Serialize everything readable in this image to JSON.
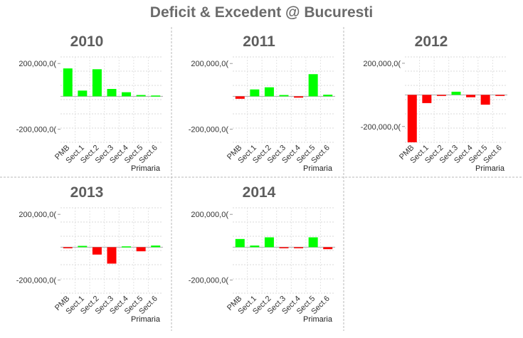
{
  "title": "Deficit & Excedent @ Bucuresti",
  "colors": {
    "positive": "#00ff00",
    "negative": "#ff0000"
  },
  "chart_data": [
    {
      "type": "bar",
      "title": "2010",
      "xlabel": "Primaria",
      "categories": [
        "PMB",
        "Sect.1",
        "Sect.2",
        "Sect.3",
        "Sect.4",
        "Sect.5",
        "Sect.6"
      ],
      "values": [
        170000000,
        35000000,
        165000000,
        45000000,
        25000000,
        8000000,
        5000000
      ],
      "ytick_labels": [
        "200,000,0(",
        "-200,000,0("
      ],
      "ylim": [
        -280000000,
        240000000
      ],
      "grid": true
    },
    {
      "type": "bar",
      "title": "2011",
      "xlabel": "Primaria",
      "categories": [
        "PMB",
        "Sect.1",
        "Sect.2",
        "Sect.3",
        "Sect.4",
        "Sect.5",
        "Sect.6"
      ],
      "values": [
        -15000000,
        42000000,
        55000000,
        8000000,
        -8000000,
        135000000,
        10000000
      ],
      "ytick_labels": [
        "200,000,0(",
        "-200,000,0("
      ],
      "ylim": [
        -280000000,
        240000000
      ],
      "grid": true
    },
    {
      "type": "bar",
      "title": "2012",
      "xlabel": "Primaria",
      "categories": [
        "PMB",
        "Sect.1",
        "Sect.2",
        "Sect.3",
        "Sect.4",
        "Sect.5",
        "Sect.6"
      ],
      "values": [
        -300000000,
        -52000000,
        -5000000,
        20000000,
        -15000000,
        -62000000,
        -3000000
      ],
      "ytick_labels": [
        "200,000,0(",
        "-200,000,0("
      ],
      "ylim": [
        -300000000,
        240000000
      ],
      "grid": true
    },
    {
      "type": "bar",
      "title": "2013",
      "xlabel": "Primaria",
      "categories": [
        "PMB",
        "Sect.1",
        "Sect.2",
        "Sect.3",
        "Sect.4",
        "Sect.5",
        "Sect.6"
      ],
      "values": [
        -5000000,
        8000000,
        -45000000,
        -100000000,
        5000000,
        -25000000,
        10000000
      ],
      "ytick_labels": [
        "200,000,0(",
        "-200,000,0("
      ],
      "ylim": [
        -280000000,
        240000000
      ],
      "grid": true
    },
    {
      "type": "bar",
      "title": "2014",
      "xlabel": "Primaria",
      "categories": [
        "PMB",
        "Sect.1",
        "Sect.2",
        "Sect.3",
        "Sect.4",
        "Sect.5",
        "Sect.6"
      ],
      "values": [
        50000000,
        10000000,
        60000000,
        -5000000,
        -5000000,
        60000000,
        -12000000
      ],
      "ytick_labels": [
        "200,000,0(",
        "-200,000,0("
      ],
      "ylim": [
        -280000000,
        240000000
      ],
      "grid": true
    }
  ]
}
